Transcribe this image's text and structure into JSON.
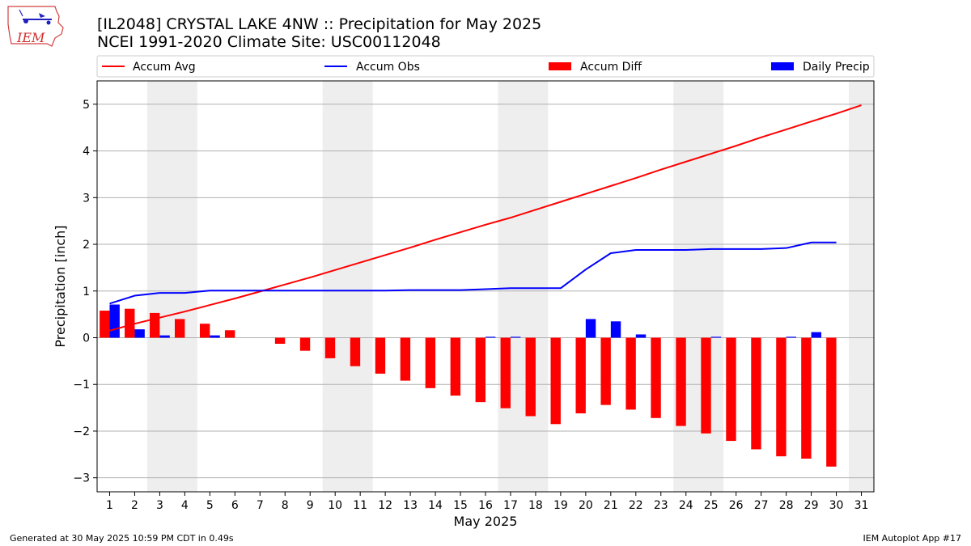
{
  "header": {
    "logo_text": "IEM",
    "title_line1": "[IL2048] CRYSTAL LAKE 4NW :: Precipitation for May 2025",
    "title_line2": "NCEI 1991-2020 Climate Site: USC00112048"
  },
  "footer": {
    "left": "Generated at 30 May 2025 10:59 PM CDT in 0.49s",
    "right": "IEM Autoplot App #17"
  },
  "colors": {
    "accum_avg": "#ff0000",
    "accum_obs": "#0000ff",
    "accum_diff": "#ff0000",
    "daily_precip": "#0000ff",
    "weekend_shade": "#eeeeee",
    "grid": "#b0b0b0"
  },
  "chart_data": {
    "type": "bar",
    "xlabel": "May 2025",
    "ylabel": "Precipitation [inch]",
    "xlim": [
      0.5,
      31.5
    ],
    "ylim": [
      -3.3,
      5.5
    ],
    "grid": "horizontal",
    "legend_position": "top",
    "x": [
      1,
      2,
      3,
      4,
      5,
      6,
      7,
      8,
      9,
      10,
      11,
      12,
      13,
      14,
      15,
      16,
      17,
      18,
      19,
      20,
      21,
      22,
      23,
      24,
      25,
      26,
      27,
      28,
      29,
      30,
      31
    ],
    "x_ticks": [
      "1",
      "2",
      "3",
      "4",
      "5",
      "6",
      "7",
      "8",
      "9",
      "10",
      "11",
      "12",
      "13",
      "14",
      "15",
      "16",
      "17",
      "18",
      "19",
      "20",
      "21",
      "22",
      "23",
      "24",
      "25",
      "26",
      "27",
      "28",
      "29",
      "30",
      "31"
    ],
    "y_ticks": [
      -3,
      -2,
      -1,
      0,
      1,
      2,
      3,
      4,
      5
    ],
    "y_tick_labels": [
      "−3",
      "−2",
      "−1",
      "0",
      "1",
      "2",
      "3",
      "4",
      "5"
    ],
    "weekend_ranges": [
      [
        2.5,
        4.5
      ],
      [
        9.5,
        11.5
      ],
      [
        16.5,
        18.5
      ],
      [
        23.5,
        25.5
      ],
      [
        30.5,
        31.5
      ]
    ],
    "series": [
      {
        "name": "Accum Avg",
        "kind": "line",
        "color": "#ff0000",
        "x": [
          1,
          2,
          3,
          4,
          5,
          6,
          7,
          8,
          9,
          10,
          11,
          12,
          13,
          14,
          15,
          16,
          17,
          18,
          19,
          20,
          21,
          22,
          23,
          24,
          25,
          26,
          27,
          28,
          29,
          30,
          31
        ],
        "values": [
          0.15,
          0.3,
          0.43,
          0.56,
          0.7,
          0.84,
          0.99,
          1.14,
          1.29,
          1.45,
          1.61,
          1.77,
          1.93,
          2.1,
          2.26,
          2.42,
          2.57,
          2.74,
          2.91,
          3.08,
          3.25,
          3.42,
          3.6,
          3.77,
          3.94,
          4.11,
          4.29,
          4.46,
          4.63,
          4.8,
          4.98
        ]
      },
      {
        "name": "Accum Obs",
        "kind": "line",
        "color": "#0000ff",
        "x": [
          1,
          2,
          3,
          4,
          5,
          6,
          7,
          8,
          9,
          10,
          11,
          12,
          13,
          14,
          15,
          16,
          17,
          18,
          19,
          20,
          21,
          22,
          23,
          24,
          25,
          26,
          27,
          28,
          29,
          30
        ],
        "values": [
          0.73,
          0.9,
          0.96,
          0.96,
          1.01,
          1.01,
          1.01,
          1.01,
          1.01,
          1.01,
          1.01,
          1.01,
          1.02,
          1.02,
          1.02,
          1.04,
          1.06,
          1.06,
          1.06,
          1.46,
          1.81,
          1.88,
          1.88,
          1.88,
          1.9,
          1.9,
          1.9,
          1.92,
          2.04,
          2.04
        ]
      },
      {
        "name": "Accum Diff",
        "kind": "bar",
        "color": "#ff0000",
        "x": [
          1,
          2,
          3,
          4,
          5,
          6,
          7,
          8,
          9,
          10,
          11,
          12,
          13,
          14,
          15,
          16,
          17,
          18,
          19,
          20,
          21,
          22,
          23,
          24,
          25,
          26,
          27,
          28,
          29,
          30
        ],
        "values": [
          0.58,
          0.62,
          0.53,
          0.4,
          0.3,
          0.16,
          0.0,
          -0.13,
          -0.28,
          -0.44,
          -0.61,
          -0.77,
          -0.92,
          -1.08,
          -1.24,
          -1.38,
          -1.51,
          -1.68,
          -1.85,
          -1.62,
          -1.44,
          -1.54,
          -1.72,
          -1.89,
          -2.05,
          -2.21,
          -2.39,
          -2.54,
          -2.59,
          -2.76
        ]
      },
      {
        "name": "Daily Precip",
        "kind": "bar",
        "color": "#0000ff",
        "x": [
          1,
          2,
          3,
          4,
          5,
          6,
          7,
          8,
          9,
          10,
          11,
          12,
          13,
          14,
          15,
          16,
          17,
          18,
          19,
          20,
          21,
          22,
          23,
          24,
          25,
          26,
          27,
          28,
          29,
          30
        ],
        "values": [
          0.71,
          0.18,
          0.05,
          0.0,
          0.05,
          0.0,
          0.0,
          0.0,
          0.0,
          0.0,
          0.0,
          0.0,
          0.0,
          0.0,
          0.0,
          0.02,
          0.02,
          0.0,
          0.0,
          0.4,
          0.35,
          0.07,
          0.0,
          0.0,
          0.02,
          0.0,
          0.0,
          0.02,
          0.12,
          0.0
        ]
      }
    ]
  }
}
